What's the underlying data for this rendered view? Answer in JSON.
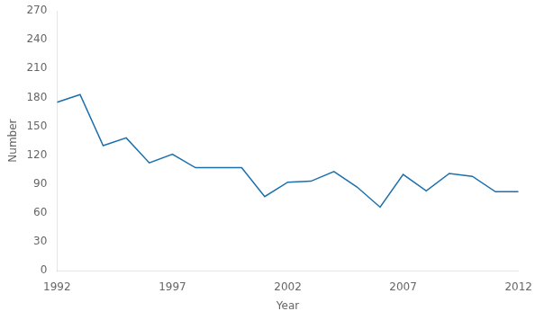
{
  "chart_data": {
    "type": "line",
    "x": [
      1992,
      1993,
      1994,
      1995,
      1996,
      1997,
      1998,
      1999,
      2000,
      2001,
      2002,
      2003,
      2004,
      2005,
      2006,
      2007,
      2008,
      2009,
      2010,
      2011,
      2012
    ],
    "values": [
      175,
      183,
      130,
      138,
      112,
      121,
      107,
      107,
      107,
      77,
      92,
      93,
      103,
      87,
      66,
      100,
      83,
      101,
      98,
      82,
      82
    ],
    "color": "#1b6fad",
    "xlabel": "Year",
    "ylabel": "Number",
    "xlim": [
      1992,
      2012
    ],
    "ylim": [
      0,
      270
    ],
    "xticks": [
      1992,
      1997,
      2002,
      2007,
      2012
    ],
    "yticks": [
      0,
      30,
      60,
      90,
      120,
      150,
      180,
      210,
      240,
      270
    ],
    "grid": false
  }
}
